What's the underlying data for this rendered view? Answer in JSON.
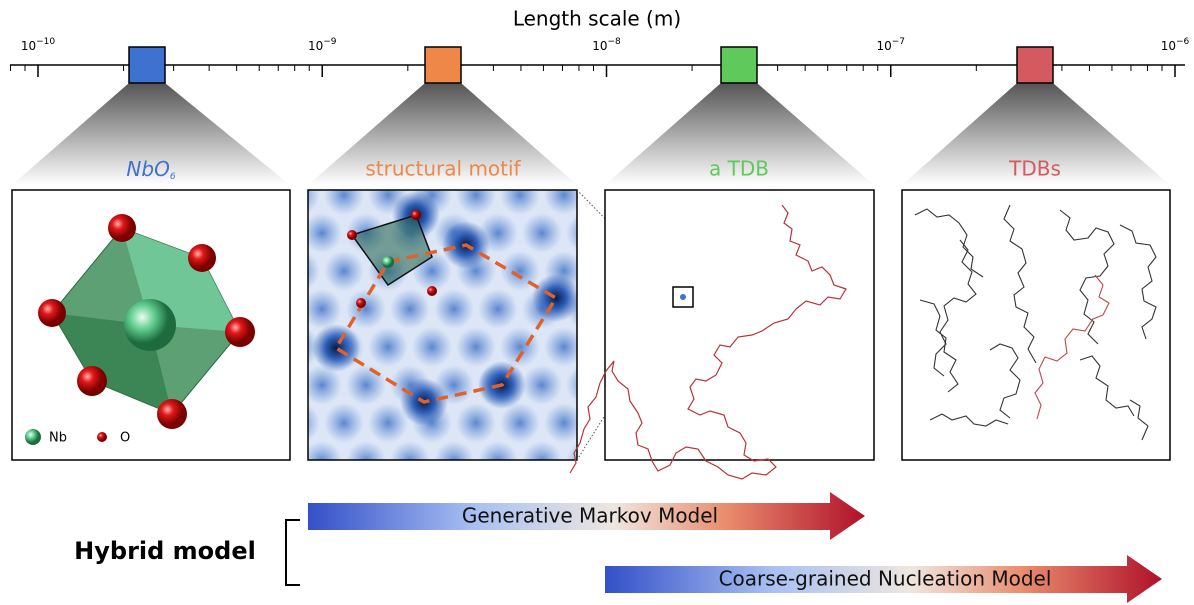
{
  "axis": {
    "title": "Length scale (m)",
    "ticks": [
      {
        "base": "10",
        "exp": "−10"
      },
      {
        "base": "10",
        "exp": "−9"
      },
      {
        "base": "10",
        "exp": "−8"
      },
      {
        "base": "10",
        "exp": "−7"
      },
      {
        "base": "10",
        "exp": "−6"
      }
    ]
  },
  "panels": [
    {
      "title": "NbO",
      "sub": "6"
    },
    {
      "title": "structural motif"
    },
    {
      "title": "a TDB"
    },
    {
      "title": "TDBs"
    }
  ],
  "legend": [
    "Nb",
    "O"
  ],
  "hybrid": {
    "label": "Hybrid model",
    "arrows": [
      "Generative Markov Model",
      "Coarse-grained Nucleation Model"
    ]
  }
}
